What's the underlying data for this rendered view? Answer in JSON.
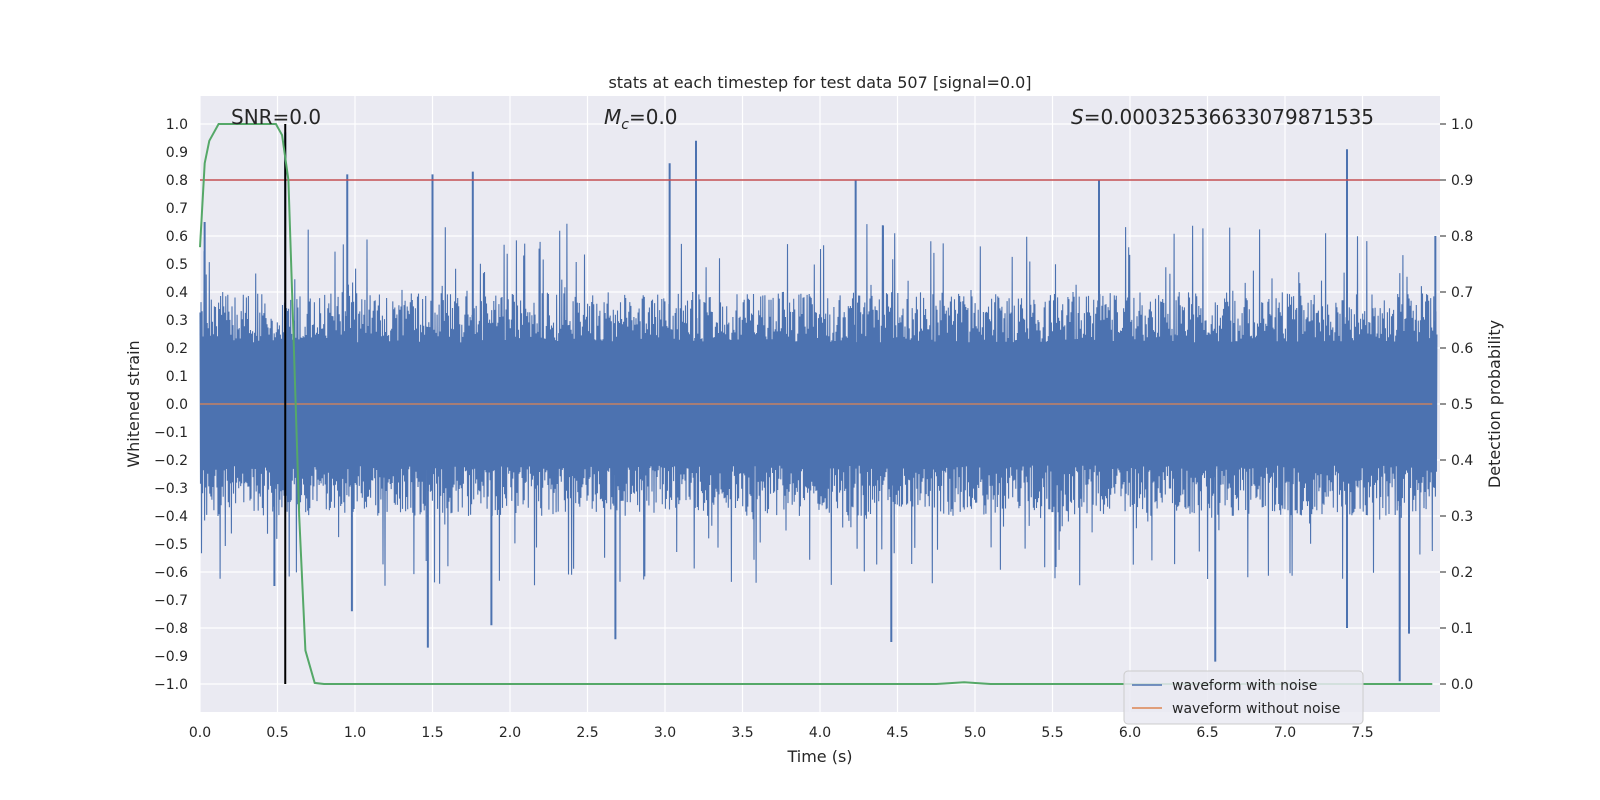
{
  "chart_data": {
    "type": "line",
    "title": "stats at each timestep for test data 507 [signal=0.0]",
    "xlabel": "Time (s)",
    "ylabel": "Whitened strain",
    "y2label": "Detection probability",
    "xlim": [
      0.0,
      8.0
    ],
    "ylim": [
      -1.1,
      1.1
    ],
    "y2lim": [
      -0.05,
      1.05
    ],
    "xticks": [
      0.0,
      0.5,
      1.0,
      1.5,
      2.0,
      2.5,
      3.0,
      3.5,
      4.0,
      4.5,
      5.0,
      5.5,
      6.0,
      6.5,
      7.0,
      7.5
    ],
    "xtick_labels": [
      "0.0",
      "0.5",
      "1.0",
      "1.5",
      "2.0",
      "2.5",
      "3.0",
      "3.5",
      "4.0",
      "4.5",
      "5.0",
      "5.5",
      "6.0",
      "6.5",
      "7.0",
      "7.5"
    ],
    "yticks": [
      1.0,
      0.9,
      0.8,
      0.7,
      0.6,
      0.5,
      0.4,
      0.3,
      0.2,
      0.1,
      0.0,
      -0.1,
      -0.2,
      -0.3,
      -0.4,
      -0.5,
      -0.6,
      -0.7,
      -0.8,
      -0.9,
      -1.0
    ],
    "ytick_labels": [
      "1.0",
      "0.9",
      "0.8",
      "0.7",
      "0.6",
      "0.5",
      "0.4",
      "0.3",
      "0.2",
      "0.1",
      "0.0",
      "−0.1",
      "−0.2",
      "−0.3",
      "−0.4",
      "−0.5",
      "−0.6",
      "−0.7",
      "−0.8",
      "−0.9",
      "−1.0"
    ],
    "y2ticks": [
      1.0,
      0.9,
      0.8,
      0.7,
      0.6,
      0.5,
      0.4,
      0.3,
      0.2,
      0.1,
      0.0
    ],
    "y2tick_labels": [
      "1.0",
      "0.9",
      "0.8",
      "0.7",
      "0.6",
      "0.5",
      "0.4",
      "0.3",
      "0.2",
      "0.1",
      "0.0"
    ],
    "annotations": {
      "snr": "SNR=0.0",
      "mc_symbol": "M",
      "mc_sub": "c",
      "mc_value": "=0.0",
      "s_symbol": "S",
      "s_value": "=0.00032536633079871535"
    },
    "threshold_y2": 0.9,
    "marker_x": 0.55,
    "series": [
      {
        "name": "waveform with noise",
        "color": "#4c72b0",
        "axis": "left",
        "kind": "noise",
        "envelope": 0.4,
        "spikes_up": [
          [
            0.03,
            0.65
          ],
          [
            0.55,
            0.97
          ],
          [
            0.95,
            0.82
          ],
          [
            1.5,
            0.82
          ],
          [
            1.76,
            0.83
          ],
          [
            3.03,
            0.86
          ],
          [
            3.2,
            0.94
          ],
          [
            4.23,
            0.8
          ],
          [
            5.8,
            0.8
          ],
          [
            7.4,
            0.91
          ],
          [
            7.97,
            0.6
          ]
        ],
        "spikes_down": [
          [
            0.48,
            -0.65
          ],
          [
            0.98,
            -0.74
          ],
          [
            1.47,
            -0.87
          ],
          [
            1.88,
            -0.79
          ],
          [
            2.68,
            -0.84
          ],
          [
            4.46,
            -0.85
          ],
          [
            6.55,
            -0.92
          ],
          [
            7.4,
            -0.8
          ],
          [
            7.74,
            -0.99
          ],
          [
            7.8,
            -0.82
          ]
        ]
      },
      {
        "name": "waveform without noise",
        "color": "#dd8452",
        "axis": "left",
        "x": [
          0.0,
          7.95
        ],
        "y": [
          0.0,
          0.0
        ]
      },
      {
        "name": "detection probability",
        "color": "#55a868",
        "axis": "right",
        "x": [
          0.0,
          0.03,
          0.06,
          0.12,
          0.2,
          0.35,
          0.49,
          0.53,
          0.57,
          0.6,
          0.64,
          0.68,
          0.74,
          0.8,
          1.0,
          2.0,
          3.0,
          4.0,
          4.75,
          4.93,
          5.1,
          6.0,
          7.0,
          7.95
        ],
        "y": [
          0.78,
          0.93,
          0.97,
          1.0,
          1.0,
          1.0,
          1.0,
          0.98,
          0.9,
          0.65,
          0.3,
          0.06,
          0.002,
          0.0,
          0.0,
          0.0,
          0.0,
          0.0,
          0.0,
          0.003,
          0.0,
          0.0,
          0.0,
          0.0
        ]
      }
    ],
    "legend": [
      "waveform with noise",
      "waveform without noise"
    ],
    "legend_position": "bottom-right",
    "grid": true
  }
}
